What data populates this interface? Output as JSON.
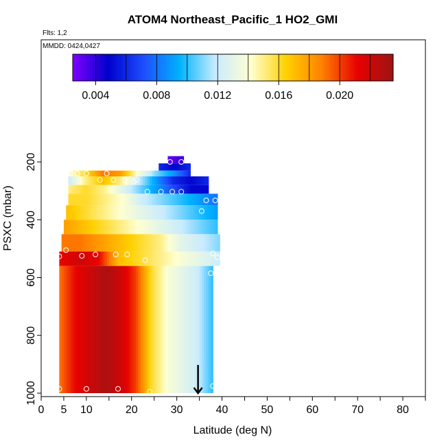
{
  "chart_data": {
    "type": "heatmap",
    "title": "ATOM4 Northeast_Pacific_1 HO2_GMI",
    "flights_label": "Flts: 1,2",
    "dates_label": "MMDD: 0424,0427",
    "xlabel": "Latitude (deg N)",
    "ylabel": "PSXC (mbar)",
    "xlim": [
      0,
      85
    ],
    "ylim": [
      1000,
      100
    ],
    "x_ticks": [
      0,
      5,
      10,
      20,
      30,
      40,
      50,
      60,
      70,
      80
    ],
    "x_tick_labels": [
      "0",
      "5",
      "10",
      "20",
      "30",
      "40",
      "50",
      "60",
      "70",
      "80"
    ],
    "y_ticks": [
      200,
      400,
      600,
      800,
      1000
    ],
    "y_tick_labels": [
      "200",
      "400",
      "600",
      "800",
      "1000"
    ],
    "grid": false,
    "colorbar": {
      "vmin": 0.0025,
      "vmax": 0.0235,
      "ticks": [
        0.004,
        0.008,
        0.012,
        0.016,
        0.02
      ],
      "tick_labels": [
        "0.004",
        "0.008",
        "0.012",
        "0.016",
        "0.020"
      ],
      "colors": [
        "#7f00ff",
        "#0000cc",
        "#1e4fff",
        "#00b2ff",
        "#c8ebff",
        "#ffffd0",
        "#ffd000",
        "#ff8000",
        "#e80000",
        "#9b1515"
      ]
    },
    "layers": [
      {
        "p_top": 180,
        "p_bot": 205,
        "lat_start": 28,
        "lat_end": 31.5,
        "values": [
          0.003,
          0.004
        ]
      },
      {
        "p_top": 205,
        "p_bot": 230,
        "lat_start": 26,
        "lat_end": 33,
        "values": [
          0.006,
          0.005,
          0.006
        ]
      },
      {
        "p_top": 230,
        "p_bot": 250,
        "lat_start": 6,
        "lat_end": 33,
        "values": [
          0.014,
          0.016,
          0.019,
          0.018,
          0.014,
          0.011,
          0.009,
          0.006
        ]
      },
      {
        "p_top": 250,
        "p_bot": 280,
        "lat_start": 6,
        "lat_end": 37,
        "values": [
          0.012,
          0.015,
          0.017,
          0.015,
          0.012,
          0.009,
          0.006,
          0.005,
          0.006
        ]
      },
      {
        "p_top": 280,
        "p_bot": 310,
        "lat_start": 6,
        "lat_end": 37,
        "values": [
          0.015,
          0.016,
          0.015,
          0.013,
          0.011,
          0.009,
          0.007,
          0.005,
          0.005
        ]
      },
      {
        "p_top": 310,
        "p_bot": 350,
        "lat_start": 6,
        "lat_end": 39,
        "values": [
          0.016,
          0.016,
          0.015,
          0.014,
          0.012,
          0.011,
          0.01,
          0.009,
          0.008
        ]
      },
      {
        "p_top": 350,
        "p_bot": 400,
        "lat_start": 5.5,
        "lat_end": 39,
        "values": [
          0.017,
          0.016,
          0.015,
          0.014,
          0.013,
          0.012,
          0.011,
          0.01,
          0.009
        ]
      },
      {
        "p_top": 400,
        "p_bot": 450,
        "lat_start": 5,
        "lat_end": 39,
        "values": [
          0.018,
          0.017,
          0.016,
          0.015,
          0.014,
          0.013,
          0.012,
          0.011,
          0.01
        ]
      },
      {
        "p_top": 450,
        "p_bot": 510,
        "lat_start": 4.5,
        "lat_end": 39.5,
        "values": [
          0.019,
          0.019,
          0.018,
          0.017,
          0.016,
          0.015,
          0.013,
          0.012,
          0.011
        ]
      },
      {
        "p_top": 510,
        "p_bot": 560,
        "lat_start": 4,
        "lat_end": 39.5,
        "values": [
          0.021,
          0.022,
          0.021,
          0.017,
          0.016,
          0.015,
          0.014,
          0.013,
          0.012
        ]
      },
      {
        "p_top": 560,
        "p_bot": 1000,
        "lat_start": 4,
        "lat_end": 38,
        "values": [
          0.019,
          0.021,
          0.022,
          0.023,
          0.022,
          0.02,
          0.016,
          0.014,
          0.013,
          0.012,
          0.01
        ]
      }
    ],
    "points": [
      {
        "lat": 28.5,
        "p": 200
      },
      {
        "lat": 31,
        "p": 200
      },
      {
        "lat": 6.5,
        "p": 240
      },
      {
        "lat": 8,
        "p": 240
      },
      {
        "lat": 10,
        "p": 240
      },
      {
        "lat": 14.5,
        "p": 240
      },
      {
        "lat": 13,
        "p": 262
      },
      {
        "lat": 16,
        "p": 262
      },
      {
        "lat": 18.5,
        "p": 262
      },
      {
        "lat": 20.5,
        "p": 268
      },
      {
        "lat": 21,
        "p": 262
      },
      {
        "lat": 23.5,
        "p": 303
      },
      {
        "lat": 26.5,
        "p": 303
      },
      {
        "lat": 29,
        "p": 303
      },
      {
        "lat": 31,
        "p": 303
      },
      {
        "lat": 36.5,
        "p": 333
      },
      {
        "lat": 38.5,
        "p": 333
      },
      {
        "lat": 35.5,
        "p": 370
      },
      {
        "lat": 5.5,
        "p": 505
      },
      {
        "lat": 4,
        "p": 527
      },
      {
        "lat": 9,
        "p": 525
      },
      {
        "lat": 12,
        "p": 520
      },
      {
        "lat": 16.5,
        "p": 520
      },
      {
        "lat": 19,
        "p": 520
      },
      {
        "lat": 23,
        "p": 540
      },
      {
        "lat": 38,
        "p": 517
      },
      {
        "lat": 39,
        "p": 530
      },
      {
        "lat": 37.5,
        "p": 585
      },
      {
        "lat": 39,
        "p": 600
      },
      {
        "lat": 4,
        "p": 985
      },
      {
        "lat": 10,
        "p": 985
      },
      {
        "lat": 17,
        "p": 985
      },
      {
        "lat": 24,
        "p": 995
      },
      {
        "lat": 38,
        "p": 975
      }
    ],
    "arrow": {
      "lat": 34.7,
      "p_top": 950,
      "p_bot": 1000
    }
  }
}
